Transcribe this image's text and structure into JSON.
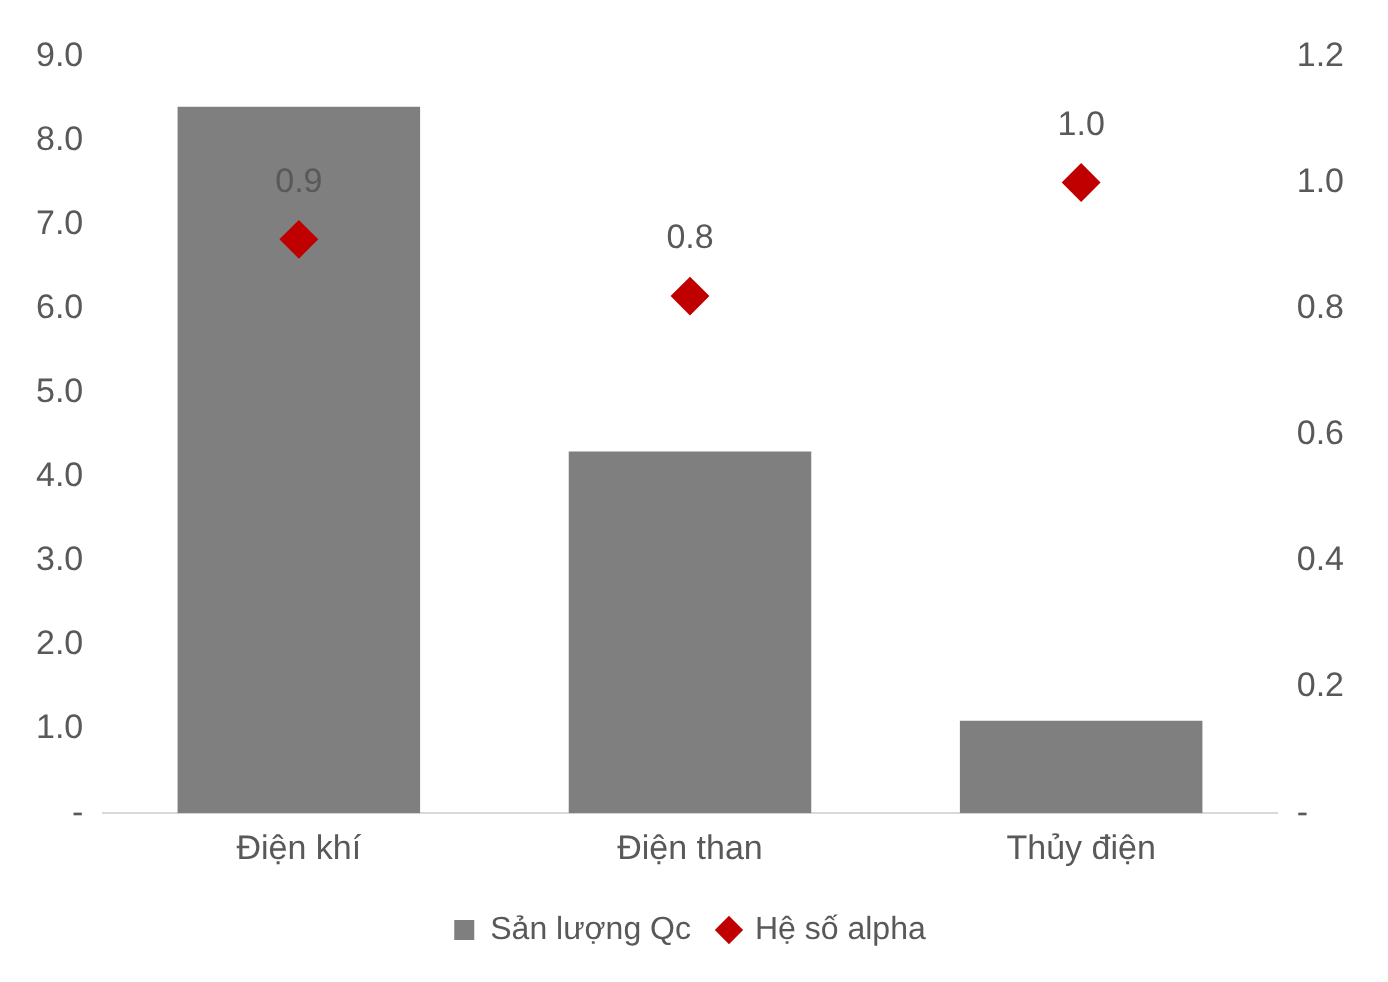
{
  "chart_data": {
    "type": "bar",
    "categories": [
      "Điện khí",
      "Điện than",
      "Thủy điện"
    ],
    "series": [
      {
        "name": "Sản lượng Qc",
        "color": "#7f7f7f",
        "values": [
          8.4,
          4.3,
          1.1
        ]
      },
      {
        "name": "Hệ số alpha",
        "type": "scatter",
        "axis": "y2",
        "color": "#c00000",
        "values": [
          0.91,
          0.82,
          1.0
        ],
        "value_labels": [
          "0.9",
          "0.8",
          "1.0"
        ]
      }
    ],
    "ylim": [
      0,
      9
    ],
    "yticks": [
      {
        "value": 0,
        "label": "-"
      },
      {
        "value": 1,
        "label": "1.0"
      },
      {
        "value": 2,
        "label": "2.0"
      },
      {
        "value": 3,
        "label": "3.0"
      },
      {
        "value": 4,
        "label": "4.0"
      },
      {
        "value": 5,
        "label": "5.0"
      },
      {
        "value": 6,
        "label": "6.0"
      },
      {
        "value": 7,
        "label": "7.0"
      },
      {
        "value": 8,
        "label": "8.0"
      },
      {
        "value": 9,
        "label": "9.0"
      }
    ],
    "y2lim": [
      0,
      1.2
    ],
    "y2ticks": [
      {
        "value": 0,
        "label": "-"
      },
      0.2,
      0.4,
      0.6,
      0.8,
      {
        "value": 1,
        "label": "1.0"
      },
      {
        "value": 1.2,
        "label": "1.2"
      }
    ],
    "grid": false,
    "legend": "bottom",
    "marker": "diamond"
  }
}
